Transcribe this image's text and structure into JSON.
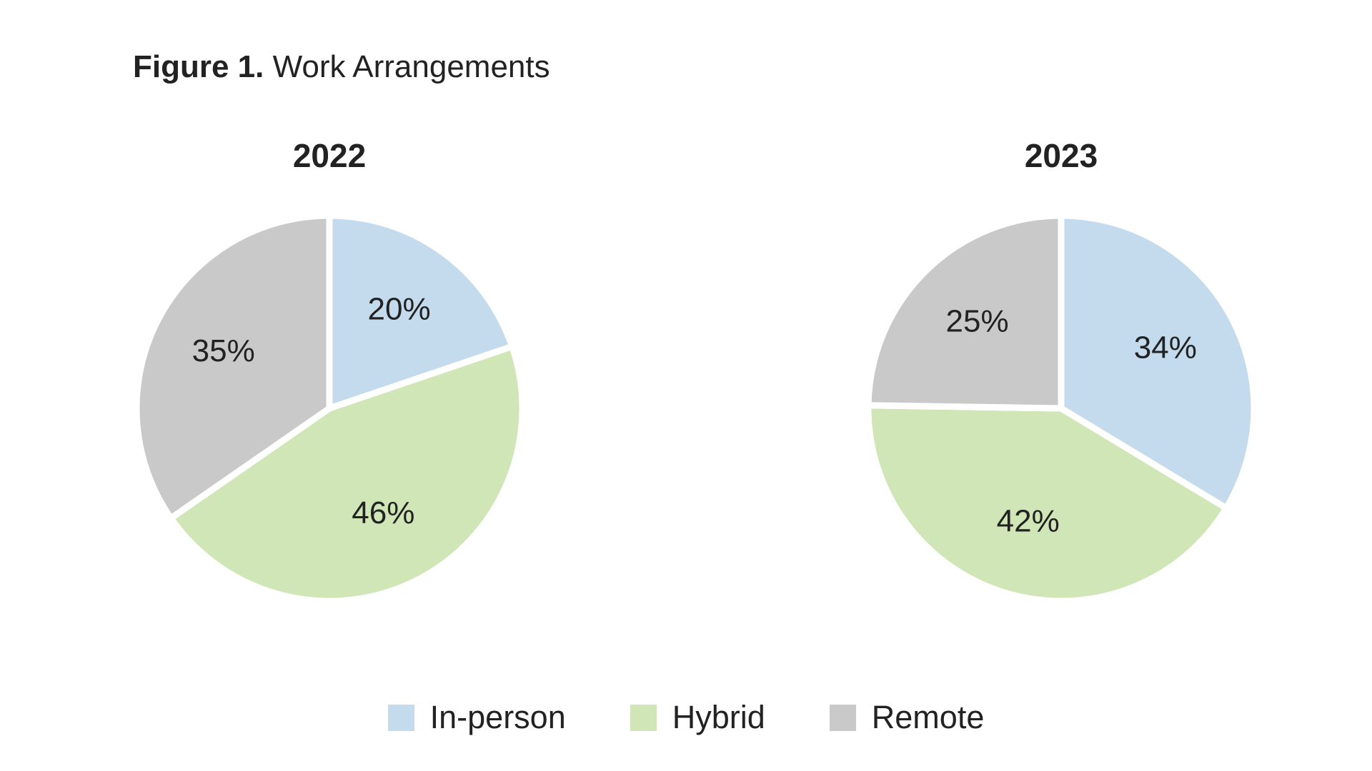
{
  "figure": {
    "label": "Figure 1.",
    "title": "Work Arrangements"
  },
  "legend": [
    {
      "name": "In-person",
      "color": "#c3dbec"
    },
    {
      "name": "Hybrid",
      "color": "#d0e6b7"
    },
    {
      "name": "Remote",
      "color": "#c8c9c8"
    }
  ],
  "chart_data": [
    {
      "type": "pie",
      "title": "2022",
      "categories": [
        "In-person",
        "Hybrid",
        "Remote"
      ],
      "values": [
        20,
        46,
        35
      ],
      "labels": [
        "20%",
        "46%",
        "35%"
      ],
      "colors": [
        "#c3dbec",
        "#d0e6b7",
        "#c8c9c8"
      ]
    },
    {
      "type": "pie",
      "title": "2023",
      "categories": [
        "In-person",
        "Hybrid",
        "Remote"
      ],
      "values": [
        34,
        42,
        25
      ],
      "labels": [
        "34%",
        "42%",
        "25%"
      ],
      "colors": [
        "#c3dbec",
        "#d0e6b7",
        "#c8c9c8"
      ]
    }
  ]
}
